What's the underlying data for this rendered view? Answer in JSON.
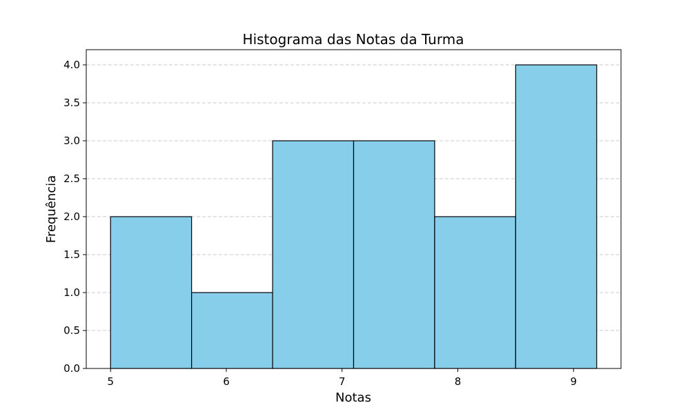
{
  "colors": {
    "bar_fill": "#87ceeb",
    "bar_edge": "#000000",
    "grid": "#c8c8c8",
    "background": "#ffffff"
  },
  "chart_data": {
    "type": "bar",
    "subtype": "histogram",
    "title": "Histograma das Notas da Turma",
    "xlabel": "Notas",
    "ylabel": "Frequência",
    "bin_edges": [
      5.0,
      5.7,
      6.4,
      7.1,
      7.8,
      8.5,
      9.2
    ],
    "values": [
      2,
      1,
      3,
      3,
      2,
      4
    ],
    "xlim": [
      4.79,
      9.41
    ],
    "ylim": [
      0,
      4.2
    ],
    "x_ticks": [
      5,
      6,
      7,
      8,
      9
    ],
    "x_tick_labels": [
      "5",
      "6",
      "7",
      "8",
      "9"
    ],
    "y_ticks": [
      0,
      0.5,
      1,
      1.5,
      2,
      2.5,
      3,
      3.5,
      4
    ],
    "y_tick_labels": [
      "0.0",
      "0.5",
      "1.0",
      "1.5",
      "2.0",
      "2.5",
      "3.0",
      "3.5",
      "4.0"
    ],
    "grid": "y-axis, dashed",
    "legend": "none"
  }
}
